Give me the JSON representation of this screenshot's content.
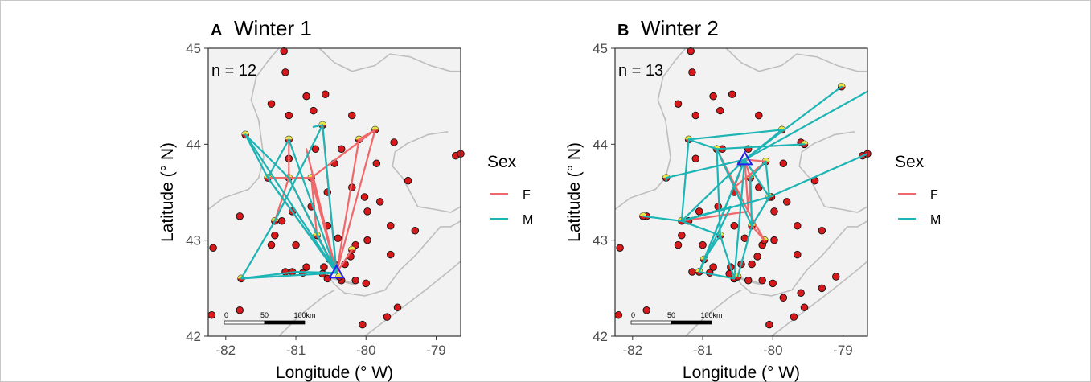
{
  "colors": {
    "female": "#F0686A",
    "male": "#1CB4B4",
    "station": "#D7191C",
    "detected": "#E8E84A",
    "release": "#2222EE",
    "land": "#F2F2F2",
    "shore": "#BEBEBE"
  },
  "legend": {
    "title": "Sex",
    "entries": [
      {
        "key": "F",
        "label": "F",
        "color": "#F0686A"
      },
      {
        "key": "M",
        "label": "M",
        "color": "#1CB4B4"
      }
    ]
  },
  "chart_data": [
    {
      "type": "scatter",
      "panel_letter": "A",
      "title": "Winter 1",
      "annotation": "n = 12",
      "xlabel": "Longitude (° W)",
      "ylabel": "Latitude (° N)",
      "xlim": [
        -82.25,
        -78.65
      ],
      "ylim": [
        42.0,
        45.0
      ],
      "x_ticks": [
        -82,
        -81,
        -80,
        -79
      ],
      "y_ticks": [
        42,
        43,
        44,
        45
      ],
      "scale_bar": {
        "labels": [
          "0",
          "50",
          "100km"
        ]
      },
      "release_site": {
        "lon": -80.42,
        "lat": 42.66
      },
      "stations": [
        [
          -81.17,
          44.97
        ],
        [
          -81.15,
          44.75
        ],
        [
          -81.35,
          44.42
        ],
        [
          -81.1,
          44.3
        ],
        [
          -80.85,
          44.5
        ],
        [
          -80.58,
          44.52
        ],
        [
          -80.75,
          44.35
        ],
        [
          -80.2,
          44.3
        ],
        [
          -80.72,
          43.95
        ],
        [
          -80.35,
          43.95
        ],
        [
          -79.85,
          43.8
        ],
        [
          -79.6,
          44.02
        ],
        [
          -81.1,
          43.85
        ],
        [
          -80.45,
          43.8
        ],
        [
          -80.78,
          43.35
        ],
        [
          -80.55,
          43.5
        ],
        [
          -80.02,
          43.45
        ],
        [
          -79.98,
          43.3
        ],
        [
          -79.8,
          43.4
        ],
        [
          -79.4,
          43.62
        ],
        [
          -79.65,
          43.15
        ],
        [
          -79.3,
          43.1
        ],
        [
          -79.98,
          43.0
        ],
        [
          -80.15,
          42.95
        ],
        [
          -80.4,
          43.02
        ],
        [
          -80.55,
          43.15
        ],
        [
          -81.8,
          43.25
        ],
        [
          -81.35,
          42.95
        ],
        [
          -81.3,
          43.05
        ],
        [
          -81.0,
          42.95
        ],
        [
          -81.05,
          42.67
        ],
        [
          -80.9,
          42.66
        ],
        [
          -80.6,
          42.72
        ],
        [
          -80.45,
          42.75
        ],
        [
          -80.3,
          42.75
        ],
        [
          -80.22,
          42.83
        ],
        [
          -80.15,
          42.58
        ],
        [
          -80.0,
          42.55
        ],
        [
          -79.65,
          42.85
        ],
        [
          -79.55,
          42.3
        ],
        [
          -79.7,
          42.2
        ],
        [
          -80.05,
          42.12
        ],
        [
          -81.15,
          42.67
        ],
        [
          -80.85,
          42.72
        ],
        [
          -82.18,
          42.92
        ],
        [
          -82.2,
          42.22
        ],
        [
          -81.8,
          42.27
        ],
        [
          -81.2,
          43.2
        ],
        [
          -81.05,
          43.3
        ],
        [
          -80.55,
          42.6
        ],
        [
          -78.72,
          43.88
        ],
        [
          -78.65,
          43.9
        ],
        [
          -80.2,
          43.55
        ],
        [
          -80.62,
          42.65
        ],
        [
          -80.35,
          42.58
        ]
      ],
      "detections": [
        [
          -81.72,
          44.1
        ],
        [
          -80.62,
          44.2
        ],
        [
          -79.87,
          44.15
        ],
        [
          -81.1,
          44.05
        ],
        [
          -80.1,
          44.05
        ],
        [
          -81.4,
          43.65
        ],
        [
          -81.1,
          43.65
        ],
        [
          -80.78,
          43.65
        ],
        [
          -81.3,
          43.2
        ],
        [
          -80.7,
          43.05
        ],
        [
          -80.2,
          42.9
        ],
        [
          -80.52,
          42.8
        ],
        [
          -81.78,
          42.6
        ],
        [
          -80.38,
          42.62
        ]
      ],
      "series": [
        {
          "name": "F",
          "paths": [
            [
              [
                -80.42,
                42.66
              ],
              [
                -81.1,
                43.65
              ],
              [
                -80.78,
                43.65
              ],
              [
                -80.42,
                42.66
              ]
            ],
            [
              [
                -80.42,
                42.66
              ],
              [
                -80.1,
                44.05
              ],
              [
                -79.87,
                44.15
              ],
              [
                -80.42,
                42.66
              ]
            ],
            [
              [
                -80.42,
                42.66
              ],
              [
                -81.4,
                43.65
              ],
              [
                -80.78,
                43.65
              ],
              [
                -80.42,
                42.66
              ]
            ],
            [
              [
                -80.42,
                42.66
              ],
              [
                -80.62,
                44.2
              ]
            ],
            [
              [
                -80.42,
                42.66
              ],
              [
                -80.78,
                43.65
              ],
              [
                -80.7,
                43.05
              ]
            ],
            [
              [
                -80.42,
                42.66
              ],
              [
                -81.1,
                43.65
              ],
              [
                -81.3,
                43.2
              ]
            ],
            [
              [
                -81.1,
                44.05
              ],
              [
                -81.1,
                43.65
              ],
              [
                -80.78,
                43.65
              ],
              [
                -79.87,
                44.15
              ]
            ],
            [
              [
                -80.42,
                42.66
              ],
              [
                -80.2,
                42.9
              ]
            ],
            [
              [
                -80.42,
                42.66
              ],
              [
                -80.85,
                43.95
              ]
            ]
          ]
        },
        {
          "name": "M",
          "paths": [
            [
              [
                -80.42,
                42.66
              ],
              [
                -81.72,
                44.1
              ],
              [
                -81.4,
                43.65
              ],
              [
                -80.42,
                42.66
              ]
            ],
            [
              [
                -80.42,
                42.66
              ],
              [
                -80.62,
                44.2
              ],
              [
                -81.3,
                43.2
              ],
              [
                -81.78,
                42.6
              ],
              [
                -80.42,
                42.66
              ]
            ],
            [
              [
                -80.42,
                42.66
              ],
              [
                -81.1,
                44.05
              ],
              [
                -81.4,
                43.65
              ],
              [
                -80.42,
                42.66
              ]
            ],
            [
              [
                -81.72,
                44.1
              ],
              [
                -81.1,
                43.65
              ],
              [
                -80.52,
                42.8
              ]
            ],
            [
              [
                -80.62,
                44.2
              ],
              [
                -80.75,
                44.18
              ]
            ],
            [
              [
                -81.78,
                42.6
              ],
              [
                -81.0,
                42.67
              ],
              [
                -80.42,
                42.66
              ]
            ],
            [
              [
                -80.52,
                42.8
              ],
              [
                -80.7,
                43.05
              ],
              [
                -80.42,
                42.66
              ]
            ]
          ]
        }
      ]
    },
    {
      "type": "scatter",
      "panel_letter": "B",
      "title": "Winter 2",
      "annotation": "n = 13",
      "xlabel": "Longitude (° W)",
      "ylabel": "Latitude (° N)",
      "xlim": [
        -82.25,
        -78.65
      ],
      "ylim": [
        42.0,
        45.0
      ],
      "x_ticks": [
        -82,
        -81,
        -80,
        -79
      ],
      "y_ticks": [
        42,
        43,
        44,
        45
      ],
      "scale_bar": {
        "labels": [
          "0",
          "50",
          "100km"
        ]
      },
      "release_site": {
        "lon": -80.4,
        "lat": 43.84
      },
      "stations": [
        [
          -81.17,
          44.97
        ],
        [
          -81.15,
          44.75
        ],
        [
          -81.35,
          44.42
        ],
        [
          -81.1,
          44.3
        ],
        [
          -80.85,
          44.5
        ],
        [
          -80.58,
          44.52
        ],
        [
          -80.75,
          44.35
        ],
        [
          -80.2,
          44.3
        ],
        [
          -80.72,
          43.95
        ],
        [
          -80.35,
          43.95
        ],
        [
          -79.85,
          43.8
        ],
        [
          -79.6,
          44.02
        ],
        [
          -81.1,
          43.85
        ],
        [
          -80.45,
          43.8
        ],
        [
          -80.78,
          43.35
        ],
        [
          -80.55,
          43.5
        ],
        [
          -80.02,
          43.45
        ],
        [
          -79.98,
          43.3
        ],
        [
          -79.8,
          43.4
        ],
        [
          -79.4,
          43.62
        ],
        [
          -79.65,
          43.15
        ],
        [
          -79.3,
          43.1
        ],
        [
          -79.98,
          43.0
        ],
        [
          -80.15,
          42.95
        ],
        [
          -80.4,
          43.02
        ],
        [
          -80.55,
          43.15
        ],
        [
          -81.8,
          43.25
        ],
        [
          -81.35,
          42.95
        ],
        [
          -81.3,
          43.05
        ],
        [
          -81.0,
          42.95
        ],
        [
          -81.05,
          42.67
        ],
        [
          -80.9,
          42.66
        ],
        [
          -80.6,
          42.72
        ],
        [
          -80.45,
          42.75
        ],
        [
          -80.3,
          42.75
        ],
        [
          -80.22,
          42.83
        ],
        [
          -80.15,
          42.58
        ],
        [
          -80.0,
          42.55
        ],
        [
          -79.65,
          42.85
        ],
        [
          -79.55,
          42.3
        ],
        [
          -79.7,
          42.2
        ],
        [
          -80.05,
          42.12
        ],
        [
          -81.15,
          42.67
        ],
        [
          -80.85,
          42.72
        ],
        [
          -82.18,
          42.92
        ],
        [
          -82.2,
          42.22
        ],
        [
          -81.8,
          42.27
        ],
        [
          -81.2,
          43.2
        ],
        [
          -81.05,
          43.3
        ],
        [
          -80.55,
          42.6
        ],
        [
          -78.72,
          43.88
        ],
        [
          -78.65,
          43.9
        ],
        [
          -80.2,
          43.55
        ],
        [
          -80.62,
          42.65
        ],
        [
          -80.35,
          42.58
        ],
        [
          -79.3,
          42.5
        ],
        [
          -79.6,
          42.45
        ],
        [
          -79.1,
          42.62
        ],
        [
          -79.85,
          42.4
        ]
      ],
      "detections": [
        [
          -79.02,
          44.6
        ],
        [
          -81.2,
          44.05
        ],
        [
          -79.87,
          44.15
        ],
        [
          -79.55,
          44.0
        ],
        [
          -80.8,
          43.95
        ],
        [
          -80.1,
          43.82
        ],
        [
          -80.32,
          43.65
        ],
        [
          -81.52,
          43.65
        ],
        [
          -80.05,
          43.45
        ],
        [
          -81.85,
          43.25
        ],
        [
          -81.3,
          43.2
        ],
        [
          -80.3,
          43.15
        ],
        [
          -80.12,
          43.0
        ],
        [
          -80.75,
          43.05
        ],
        [
          -80.98,
          42.8
        ],
        [
          -81.05,
          42.67
        ],
        [
          -80.55,
          42.6
        ],
        [
          -80.5,
          42.62
        ]
      ],
      "series": [
        {
          "name": "F",
          "paths": [
            [
              [
                -80.4,
                43.84
              ],
              [
                -80.32,
                43.65
              ],
              [
                -80.35,
                43.3
              ],
              [
                -80.12,
                43.0
              ],
              [
                -80.35,
                43.3
              ],
              [
                -81.3,
                43.2
              ],
              [
                -80.35,
                43.3
              ],
              [
                -80.4,
                43.84
              ]
            ],
            [
              [
                -80.4,
                43.84
              ],
              [
                -80.1,
                43.82
              ],
              [
                -80.55,
                43.55
              ],
              [
                -80.4,
                43.84
              ]
            ],
            [
              [
                -80.35,
                43.3
              ],
              [
                -80.8,
                43.95
              ]
            ],
            [
              [
                -80.3,
                43.15
              ],
              [
                -80.12,
                43.0
              ]
            ]
          ]
        },
        {
          "name": "M",
          "paths": [
            [
              [
                -80.4,
                43.84
              ],
              [
                -79.02,
                44.6
              ]
            ],
            [
              [
                -80.4,
                43.84
              ],
              [
                -78.65,
                44.55
              ]
            ],
            [
              [
                -80.4,
                43.84
              ],
              [
                -79.87,
                44.15
              ],
              [
                -81.2,
                44.05
              ],
              [
                -80.8,
                43.95
              ],
              [
                -79.55,
                44.0
              ],
              [
                -80.8,
                43.95
              ]
            ],
            [
              [
                -80.4,
                43.84
              ],
              [
                -80.05,
                43.45
              ],
              [
                -78.65,
                43.9
              ]
            ],
            [
              [
                -80.4,
                43.84
              ],
              [
                -81.52,
                43.65
              ],
              [
                -81.52,
                43.62
              ]
            ],
            [
              [
                -80.4,
                43.84
              ],
              [
                -81.3,
                43.2
              ],
              [
                -81.85,
                43.25
              ],
              [
                -81.3,
                43.2
              ],
              [
                -80.75,
                43.05
              ],
              [
                -80.98,
                42.8
              ],
              [
                -80.4,
                43.84
              ]
            ],
            [
              [
                -80.4,
                43.84
              ],
              [
                -81.05,
                42.67
              ],
              [
                -80.55,
                42.6
              ],
              [
                -80.4,
                43.84
              ]
            ],
            [
              [
                -80.8,
                43.95
              ],
              [
                -80.75,
                43.05
              ],
              [
                -80.55,
                42.6
              ]
            ],
            [
              [
                -81.3,
                43.2
              ],
              [
                -80.05,
                43.45
              ],
              [
                -80.3,
                43.15
              ],
              [
                -80.8,
                43.95
              ]
            ],
            [
              [
                -80.1,
                43.82
              ],
              [
                -80.05,
                43.45
              ],
              [
                -80.3,
                43.15
              ],
              [
                -80.5,
                42.62
              ]
            ],
            [
              [
                -81.2,
                44.05
              ],
              [
                -81.3,
                43.2
              ],
              [
                -80.6,
                43.35
              ],
              [
                -81.05,
                42.67
              ]
            ],
            [
              [
                -80.1,
                43.82
              ],
              [
                -80.32,
                43.65
              ],
              [
                -80.3,
                43.15
              ]
            ]
          ]
        }
      ]
    }
  ]
}
